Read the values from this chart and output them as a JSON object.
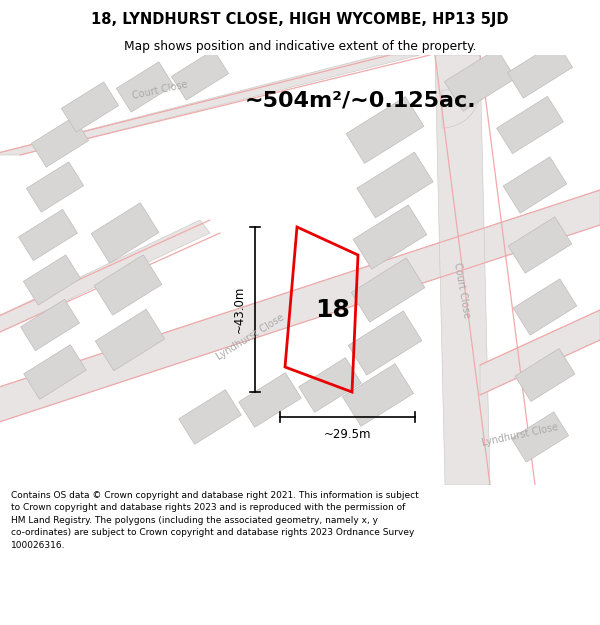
{
  "title": "18, LYNDHURST CLOSE, HIGH WYCOMBE, HP13 5JD",
  "subtitle": "Map shows position and indicative extent of the property.",
  "area_label": "~504m²/~0.125ac.",
  "label_18": "18",
  "dim_vertical": "~43.0m",
  "dim_horizontal": "~29.5m",
  "footer_line1": "Contains OS data © Crown copyright and database right 2021. This information is subject",
  "footer_line2": "to Crown copyright and database rights 2023 and is reproduced with the permission of",
  "footer_line3": "HM Land Registry. The polygons (including the associated geometry, namely x, y",
  "footer_line4": "co-ordinates) are subject to Crown copyright and database rights 2023 Ordnance Survey",
  "footer_line5": "100026316.",
  "map_bg": "#ffffff",
  "road_area_color": "#e8e4e4",
  "road_line_color": "#f0aaaa",
  "road_grey_line": "#c8c4c4",
  "building_fill": "#d8d5d5",
  "building_edge": "#c0bcbc",
  "property_red": "#e80000",
  "street_color": "#aaaaaa",
  "dim_color": "#333333"
}
